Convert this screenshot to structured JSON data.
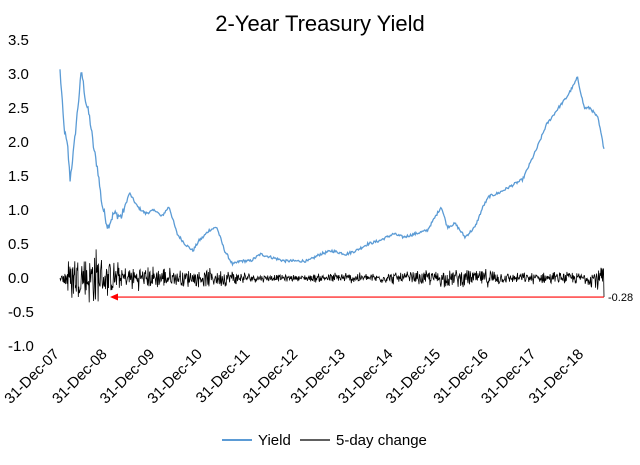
{
  "chart_data": {
    "type": "line",
    "title": "2-Year Treasury Yield",
    "xlabel": "",
    "ylabel": "",
    "ylim": [
      -1.0,
      3.5
    ],
    "yticks": [
      -1.0,
      -0.5,
      0.0,
      0.5,
      1.0,
      1.5,
      2.0,
      2.5,
      3.0,
      3.5
    ],
    "ytick_labels": [
      "-1.0",
      "-0.5",
      "0.0",
      "0.5",
      "1.0",
      "1.5",
      "2.0",
      "2.5",
      "3.0",
      "3.5"
    ],
    "xlim": [
      "2007-12-31",
      "2019-05-31"
    ],
    "xtick_dates": [
      "2007-12-31",
      "2008-12-31",
      "2009-12-31",
      "2010-12-31",
      "2011-12-31",
      "2012-12-31",
      "2013-12-31",
      "2014-12-31",
      "2015-12-31",
      "2016-12-31",
      "2017-12-31",
      "2018-12-31"
    ],
    "xtick_labels": [
      "31-Dec-07",
      "31-Dec-08",
      "31-Dec-09",
      "31-Dec-10",
      "31-Dec-11",
      "31-Dec-12",
      "31-Dec-13",
      "31-Dec-14",
      "31-Dec-15",
      "31-Dec-16",
      "31-Dec-17",
      "31-Dec-18"
    ],
    "grid": false,
    "legend_position": "bottom",
    "series": [
      {
        "name": "Yield",
        "color": "#5b9bd5",
        "x": [
          "2007-12-31",
          "2008-01-31",
          "2008-02-29",
          "2008-03-17",
          "2008-04-15",
          "2008-05-15",
          "2008-06-13",
          "2008-07-15",
          "2008-08-15",
          "2008-09-15",
          "2008-10-15",
          "2008-11-15",
          "2008-12-31",
          "2009-02-15",
          "2009-04-15",
          "2009-06-15",
          "2009-08-15",
          "2009-10-15",
          "2009-12-31",
          "2010-02-15",
          "2010-04-15",
          "2010-06-15",
          "2010-08-15",
          "2010-10-15",
          "2010-11-30",
          "2010-12-31",
          "2011-02-15",
          "2011-04-15",
          "2011-06-15",
          "2011-08-15",
          "2011-10-15",
          "2011-12-31",
          "2012-03-15",
          "2012-06-15",
          "2012-09-15",
          "2012-12-31",
          "2013-03-15",
          "2013-06-15",
          "2013-09-15",
          "2013-12-31",
          "2014-03-15",
          "2014-06-15",
          "2014-09-15",
          "2014-12-31",
          "2015-03-15",
          "2015-06-15",
          "2015-09-15",
          "2015-12-31",
          "2016-02-15",
          "2016-04-15",
          "2016-06-30",
          "2016-09-15",
          "2016-11-15",
          "2016-12-31",
          "2017-03-15",
          "2017-06-15",
          "2017-09-15",
          "2017-12-31",
          "2018-03-15",
          "2018-06-15",
          "2018-08-15",
          "2018-10-15",
          "2018-11-08",
          "2018-12-31",
          "2019-02-15",
          "2019-04-15",
          "2019-05-31"
        ],
        "values": [
          3.05,
          2.2,
          1.9,
          1.45,
          1.9,
          2.5,
          3.05,
          2.6,
          2.35,
          1.9,
          1.6,
          1.1,
          0.75,
          0.95,
          0.9,
          1.25,
          1.05,
          0.95,
          1.0,
          0.9,
          1.05,
          0.65,
          0.5,
          0.4,
          0.55,
          0.6,
          0.7,
          0.75,
          0.4,
          0.2,
          0.25,
          0.25,
          0.35,
          0.3,
          0.25,
          0.25,
          0.25,
          0.35,
          0.4,
          0.35,
          0.4,
          0.5,
          0.55,
          0.65,
          0.6,
          0.65,
          0.7,
          1.05,
          0.75,
          0.8,
          0.6,
          0.75,
          1.05,
          1.2,
          1.25,
          1.35,
          1.45,
          1.9,
          2.25,
          2.5,
          2.65,
          2.85,
          2.95,
          2.5,
          2.5,
          2.35,
          1.9
        ]
      },
      {
        "name": "5-day change",
        "color": "#000000",
        "x": [
          "2007-12-31",
          "2008-03-15",
          "2008-06-15",
          "2008-09-15",
          "2008-12-31",
          "2009-06-15",
          "2009-12-31",
          "2010-06-15",
          "2010-12-31",
          "2011-06-15",
          "2011-12-31",
          "2012-06-15",
          "2012-12-31",
          "2013-06-15",
          "2013-12-31",
          "2014-06-15",
          "2014-12-31",
          "2015-06-15",
          "2015-12-31",
          "2016-06-15",
          "2016-12-31",
          "2017-06-15",
          "2017-12-31",
          "2018-06-15",
          "2018-12-31",
          "2019-05-31"
        ],
        "values": [
          0.0,
          -0.45,
          0.4,
          -0.55,
          0.3,
          -0.2,
          0.2,
          -0.15,
          0.15,
          -0.15,
          0.08,
          -0.06,
          0.05,
          -0.08,
          0.1,
          -0.08,
          0.1,
          -0.12,
          0.15,
          -0.15,
          0.15,
          -0.08,
          0.1,
          -0.1,
          0.1,
          -0.28
        ]
      }
    ],
    "annotations": [
      {
        "text": "-0.28",
        "value": -0.28,
        "color": "#ff0000"
      }
    ]
  }
}
